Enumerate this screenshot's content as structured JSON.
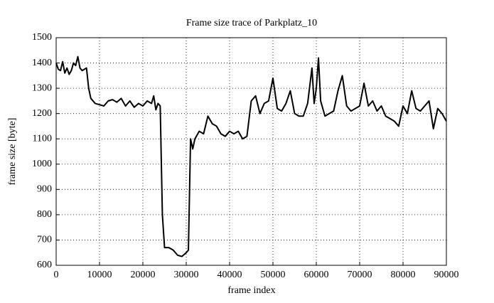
{
  "chart_data": {
    "type": "line",
    "title": "Frame size trace of Parkplatz_10",
    "xlabel": "frame index",
    "ylabel": "frame size [byte]",
    "x": [
      0,
      500,
      1000,
      1500,
      2000,
      2500,
      3000,
      3500,
      4000,
      4500,
      5000,
      5500,
      6000,
      7000,
      7500,
      8000,
      9000,
      10000,
      11000,
      12000,
      13000,
      14000,
      15000,
      16000,
      17000,
      18000,
      19000,
      20000,
      21000,
      22000,
      22500,
      23000,
      23500,
      24000,
      24500,
      25000,
      26000,
      27000,
      28000,
      29000,
      30000,
      30500,
      31000,
      31500,
      32000,
      33000,
      34000,
      35000,
      36000,
      37000,
      38000,
      39000,
      40000,
      41000,
      42000,
      43000,
      44000,
      45000,
      46000,
      47000,
      48000,
      49000,
      50000,
      51000,
      52000,
      53000,
      54000,
      55000,
      56000,
      57000,
      58000,
      59000,
      59500,
      60000,
      60500,
      61000,
      62000,
      63000,
      64000,
      65000,
      66000,
      67000,
      68000,
      69000,
      70000,
      71000,
      72000,
      73000,
      74000,
      75000,
      76000,
      77000,
      78000,
      79000,
      80000,
      81000,
      82000,
      83000,
      84000,
      85000,
      86000,
      87000,
      88000,
      89000,
      90000
    ],
    "series": [
      {
        "color": "#000000",
        "values": [
          1400,
          1375,
          1370,
          1405,
          1360,
          1380,
          1355,
          1370,
          1400,
          1390,
          1425,
          1380,
          1370,
          1380,
          1300,
          1260,
          1240,
          1235,
          1230,
          1250,
          1255,
          1245,
          1260,
          1230,
          1250,
          1225,
          1240,
          1230,
          1250,
          1240,
          1270,
          1215,
          1240,
          1230,
          800,
          670,
          670,
          660,
          640,
          635,
          650,
          660,
          1100,
          1060,
          1100,
          1130,
          1120,
          1190,
          1160,
          1150,
          1120,
          1110,
          1130,
          1120,
          1130,
          1100,
          1110,
          1250,
          1270,
          1200,
          1240,
          1250,
          1340,
          1220,
          1210,
          1240,
          1290,
          1200,
          1190,
          1190,
          1240,
          1380,
          1240,
          1300,
          1420,
          1250,
          1190,
          1200,
          1210,
          1290,
          1350,
          1230,
          1210,
          1220,
          1230,
          1320,
          1230,
          1250,
          1210,
          1230,
          1190,
          1180,
          1170,
          1150,
          1230,
          1200,
          1290,
          1220,
          1210,
          1230,
          1250,
          1140,
          1220,
          1200,
          1170
        ]
      }
    ],
    "xlim": [
      0,
      90000
    ],
    "ylim": [
      600,
      1500
    ],
    "xticks": [
      0,
      10000,
      20000,
      30000,
      40000,
      50000,
      60000,
      70000,
      80000,
      90000
    ],
    "yticks": [
      600,
      700,
      800,
      900,
      1000,
      1100,
      1200,
      1300,
      1400,
      1500
    ],
    "grid": true
  }
}
